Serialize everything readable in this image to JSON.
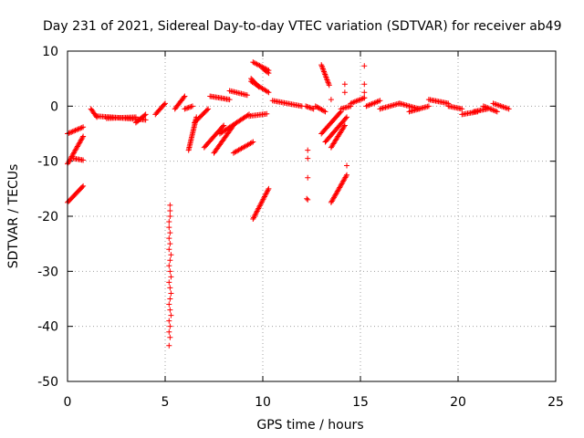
{
  "chart_data": {
    "type": "scatter",
    "title": "Day 231 of 2021, Sidereal Day-to-day VTEC variation (SDTVAR) for receiver ab49",
    "xlabel": "GPS time / hours",
    "ylabel": "SDTVAR / TECUs",
    "xlim": [
      0,
      25
    ],
    "ylim": [
      -50,
      10
    ],
    "xticks": [
      0,
      5,
      10,
      15,
      20,
      25
    ],
    "yticks": [
      -50,
      -40,
      -30,
      -20,
      -10,
      0,
      10
    ],
    "grid": true,
    "marker": "+",
    "color": "#ff0000",
    "segments": [
      {
        "x": [
          0.0,
          0.8
        ],
        "y": [
          -5.0,
          -3.8
        ]
      },
      {
        "x": [
          0.0,
          0.8
        ],
        "y": [
          -10.5,
          -5.5
        ]
      },
      {
        "x": [
          0.3,
          0.8
        ],
        "y": [
          -9.5,
          -9.8
        ]
      },
      {
        "x": [
          0.0,
          0.8
        ],
        "y": [
          -17.5,
          -14.5
        ]
      },
      {
        "x": [
          1.2,
          1.5
        ],
        "y": [
          -0.5,
          -2.0
        ]
      },
      {
        "x": [
          1.5,
          4.0
        ],
        "y": [
          -1.8,
          -2.5
        ]
      },
      {
        "x": [
          2.0,
          3.5
        ],
        "y": [
          -2.2,
          -2.0
        ]
      },
      {
        "x": [
          3.5,
          4.0
        ],
        "y": [
          -3.0,
          -1.5
        ]
      },
      {
        "x": [
          4.5,
          5.0
        ],
        "y": [
          -1.5,
          0.5
        ]
      },
      {
        "x": [
          5.5,
          6.0
        ],
        "y": [
          -0.5,
          1.8
        ]
      },
      {
        "x": [
          6.0,
          6.4
        ],
        "y": [
          -0.5,
          0.0
        ]
      },
      {
        "x": [
          6.2,
          6.6
        ],
        "y": [
          -8.0,
          -2.0
        ]
      },
      {
        "x": [
          6.5,
          7.2
        ],
        "y": [
          -3.0,
          -0.5
        ]
      },
      {
        "x": [
          7.3,
          8.3
        ],
        "y": [
          1.8,
          1.2
        ]
      },
      {
        "x": [
          7.0,
          8.0
        ],
        "y": [
          -7.5,
          -3.5
        ]
      },
      {
        "x": [
          7.5,
          8.5
        ],
        "y": [
          -8.5,
          -3.5
        ]
      },
      {
        "x": [
          7.8,
          9.3
        ],
        "y": [
          -5.0,
          -1.5
        ]
      },
      {
        "x": [
          8.5,
          9.5
        ],
        "y": [
          -8.5,
          -6.5
        ]
      },
      {
        "x": [
          8.3,
          9.2
        ],
        "y": [
          2.8,
          2.0
        ]
      },
      {
        "x": [
          9.3,
          10.2
        ],
        "y": [
          -1.8,
          -1.4
        ]
      },
      {
        "x": [
          9.4,
          9.8
        ],
        "y": [
          5.0,
          3.5
        ]
      },
      {
        "x": [
          9.4,
          10.3
        ],
        "y": [
          4.5,
          2.5
        ]
      },
      {
        "x": [
          9.5,
          10.3
        ],
        "y": [
          8.0,
          6.5
        ]
      },
      {
        "x": [
          10.0,
          10.3
        ],
        "y": [
          6.8,
          6.0
        ]
      },
      {
        "x": [
          9.5,
          10.3
        ],
        "y": [
          -20.5,
          -15.0
        ]
      },
      {
        "x": [
          10.5,
          12.0
        ],
        "y": [
          1.0,
          0.0
        ]
      },
      {
        "x": [
          12.2,
          12.6
        ],
        "y": [
          0.0,
          -0.5
        ]
      },
      {
        "x": [
          12.7,
          13.2
        ],
        "y": [
          0.0,
          -1.0
        ]
      },
      {
        "x": [
          13.0,
          13.4
        ],
        "y": [
          7.5,
          3.8
        ]
      },
      {
        "x": [
          13.0,
          14.0
        ],
        "y": [
          -5.0,
          -1.0
        ]
      },
      {
        "x": [
          13.2,
          14.3
        ],
        "y": [
          -6.5,
          -2.0
        ]
      },
      {
        "x": [
          13.5,
          14.2
        ],
        "y": [
          -7.5,
          -3.5
        ]
      },
      {
        "x": [
          13.5,
          14.3
        ],
        "y": [
          -17.5,
          -12.5
        ]
      },
      {
        "x": [
          14.0,
          14.5
        ],
        "y": [
          -0.5,
          0.0
        ]
      },
      {
        "x": [
          14.5,
          15.2
        ],
        "y": [
          0.5,
          1.5
        ]
      },
      {
        "x": [
          15.3,
          16.0
        ],
        "y": [
          0.0,
          1.0
        ]
      },
      {
        "x": [
          16.0,
          17.0
        ],
        "y": [
          -0.5,
          0.5
        ]
      },
      {
        "x": [
          17.0,
          18.0
        ],
        "y": [
          0.5,
          -0.5
        ]
      },
      {
        "x": [
          17.5,
          18.5
        ],
        "y": [
          -1.0,
          0.0
        ]
      },
      {
        "x": [
          18.5,
          19.5
        ],
        "y": [
          1.2,
          0.5
        ]
      },
      {
        "x": [
          19.5,
          20.2
        ],
        "y": [
          0.0,
          -0.5
        ]
      },
      {
        "x": [
          20.2,
          21.0
        ],
        "y": [
          -1.5,
          -1.0
        ]
      },
      {
        "x": [
          20.8,
          21.5
        ],
        "y": [
          -1.0,
          -0.5
        ]
      },
      {
        "x": [
          21.3,
          22.0
        ],
        "y": [
          0.0,
          -1.0
        ]
      },
      {
        "x": [
          21.8,
          22.6
        ],
        "y": [
          0.5,
          -0.5
        ]
      }
    ],
    "points": [
      [
        5.25,
        -18
      ],
      [
        5.25,
        -19
      ],
      [
        5.25,
        -20
      ],
      [
        5.2,
        -21
      ],
      [
        5.2,
        -22
      ],
      [
        5.25,
        -23
      ],
      [
        5.2,
        -24
      ],
      [
        5.25,
        -25
      ],
      [
        5.2,
        -26
      ],
      [
        5.3,
        -27
      ],
      [
        5.25,
        -28
      ],
      [
        5.2,
        -29
      ],
      [
        5.25,
        -30
      ],
      [
        5.3,
        -31
      ],
      [
        5.2,
        -32
      ],
      [
        5.25,
        -33
      ],
      [
        5.3,
        -34
      ],
      [
        5.25,
        -35
      ],
      [
        5.2,
        -36
      ],
      [
        5.25,
        -37
      ],
      [
        5.3,
        -38
      ],
      [
        5.2,
        -39
      ],
      [
        5.25,
        -40
      ],
      [
        5.2,
        -41
      ],
      [
        5.25,
        -42
      ],
      [
        5.2,
        -43.5
      ],
      [
        12.3,
        -8
      ],
      [
        12.3,
        -9.5
      ],
      [
        12.3,
        -13
      ],
      [
        12.3,
        -17
      ],
      [
        12.25,
        -16.8
      ],
      [
        13.5,
        1.2
      ],
      [
        14.2,
        4
      ],
      [
        14.2,
        2.5
      ],
      [
        14.3,
        -10.8
      ],
      [
        15.2,
        7.3
      ],
      [
        15.2,
        4
      ],
      [
        15.2,
        2.5
      ],
      [
        15.2,
        1.5
      ]
    ]
  }
}
